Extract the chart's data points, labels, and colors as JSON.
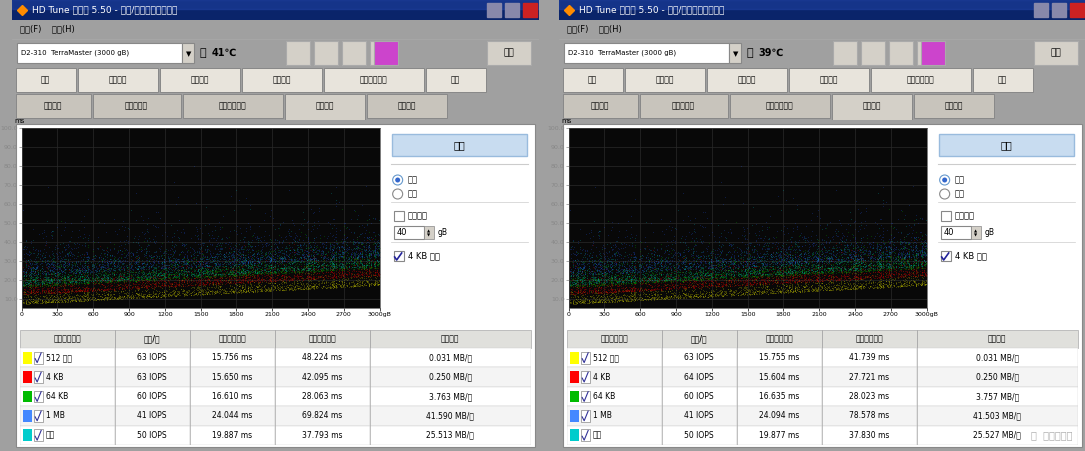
{
  "panels": [
    {
      "title": "HD Tune 专业版 5.50 - 硬盘/固态硬盘实用程序",
      "temp": "41℃",
      "device": "D2-310  TerraMaster (3000 gB)",
      "table_headers": [
        "传输数据大小",
        "操作/秒",
        "平均存取时间",
        "最大存取时间",
        "平均速度"
      ],
      "rows": [
        {
          "label": "512 字节",
          "color": "#FFFF00",
          "ops": "63 IOPS",
          "avg": "15.756 ms",
          "max": "48.224 ms",
          "speed": "0.031 MB/秒"
        },
        {
          "label": "4 KB",
          "color": "#FF0000",
          "ops": "63 IOPS",
          "avg": "15.650 ms",
          "max": "42.095 ms",
          "speed": "0.250 MB/秒"
        },
        {
          "label": "64 KB",
          "color": "#00BB00",
          "ops": "60 IOPS",
          "avg": "16.610 ms",
          "max": "28.063 ms",
          "speed": "3.763 MB/秒"
        },
        {
          "label": "1 MB",
          "color": "#4488FF",
          "ops": "41 IOPS",
          "avg": "24.044 ms",
          "max": "69.824 ms",
          "speed": "41.590 MB/秒"
        },
        {
          "label": "随机",
          "color": "#00CCCC",
          "ops": "50 IOPS",
          "avg": "19.887 ms",
          "max": "37.793 ms",
          "speed": "25.513 MB/秒"
        }
      ]
    },
    {
      "title": "HD Tune 专业版 5.50 - 硬盘/固态硬盘实用程序",
      "temp": "39℃",
      "device": "D2-310  TerraMaster (3000 gB)",
      "table_headers": [
        "传输数据大小",
        "操作/秒",
        "平均存取时间",
        "最大存取时间",
        "平均速度"
      ],
      "rows": [
        {
          "label": "512 字节",
          "color": "#FFFF00",
          "ops": "63 IOPS",
          "avg": "15.755 ms",
          "max": "41.739 ms",
          "speed": "0.031 MB/秒"
        },
        {
          "label": "4 KB",
          "color": "#FF0000",
          "ops": "64 IOPS",
          "avg": "15.604 ms",
          "max": "27.721 ms",
          "speed": "0.250 MB/秒"
        },
        {
          "label": "64 KB",
          "color": "#00BB00",
          "ops": "60 IOPS",
          "avg": "16.635 ms",
          "max": "28.023 ms",
          "speed": "3.757 MB/秒"
        },
        {
          "label": "1 MB",
          "color": "#4488FF",
          "ops": "41 IOPS",
          "avg": "24.094 ms",
          "max": "78.578 ms",
          "speed": "41.503 MB/秒"
        },
        {
          "label": "随机",
          "color": "#00CCCC",
          "ops": "50 IOPS",
          "avg": "19.877 ms",
          "max": "37.830 ms",
          "speed": "25.527 MB/秒"
        }
      ]
    }
  ],
  "window_bg": "#D4D0C8",
  "content_bg": "#FFFFFF",
  "title_bar_color": "#0A246A",
  "watermark": "值  什么值得买"
}
